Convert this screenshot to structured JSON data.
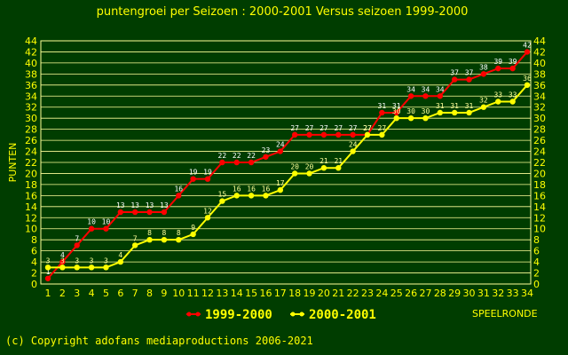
{
  "chart_data": {
    "type": "line",
    "title": "puntengroei per Seizoen : 2000-2001 Versus seizoen 1999-2000",
    "ylabel": "PUNTEN",
    "xlabel": "SPEELRONDE",
    "x": [
      1,
      2,
      3,
      4,
      5,
      6,
      7,
      8,
      9,
      10,
      11,
      12,
      13,
      14,
      15,
      16,
      17,
      18,
      19,
      20,
      21,
      22,
      23,
      24,
      25,
      26,
      27,
      28,
      29,
      30,
      31,
      32,
      33,
      34
    ],
    "ylim": [
      0,
      44
    ],
    "yticks": [
      0,
      2,
      4,
      6,
      8,
      10,
      12,
      14,
      16,
      18,
      20,
      22,
      24,
      26,
      28,
      30,
      32,
      34,
      36,
      38,
      40,
      42,
      44
    ],
    "grid": true,
    "legend_position": "bottom",
    "series": [
      {
        "name": "1999-2000",
        "color": "#ff0000",
        "values": [
          1,
          4,
          7,
          10,
          10,
          13,
          13,
          13,
          13,
          16,
          19,
          19,
          22,
          22,
          22,
          23,
          24,
          27,
          27,
          27,
          27,
          27,
          27,
          31,
          31,
          34,
          34,
          34,
          37,
          37,
          38,
          39,
          39,
          42
        ]
      },
      {
        "name": "2000-2001",
        "color": "#ffff00",
        "values": [
          3,
          3,
          3,
          3,
          3,
          4,
          7,
          8,
          8,
          8,
          9,
          12,
          15,
          16,
          16,
          16,
          17,
          20,
          20,
          21,
          21,
          24,
          27,
          27,
          30,
          30,
          30,
          31,
          31,
          31,
          32,
          33,
          33,
          36
        ]
      }
    ]
  },
  "footer": {
    "copyright": "(c) Copyright adofans mediaproductions 2006-2021"
  },
  "colors": {
    "background": "#003d00",
    "grid": "#ffff99",
    "text": "#ffff00"
  }
}
